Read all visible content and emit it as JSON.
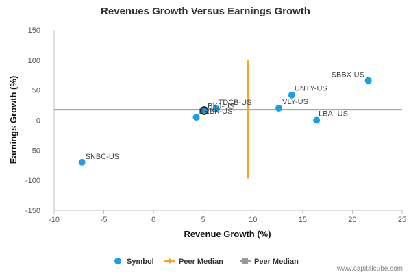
{
  "chart_data": {
    "type": "scatter",
    "title": "Revenues Growth Versus Earnings Growth",
    "xlabel": "Revenue Growth (%)",
    "ylabel": "Earnings Growth (%)",
    "xlim": [
      -10,
      25
    ],
    "ylim": [
      -150,
      150
    ],
    "xticks": [
      -10,
      -5,
      0,
      5,
      10,
      15,
      20,
      25
    ],
    "yticks": [
      -150,
      -100,
      -50,
      0,
      50,
      100,
      150
    ],
    "grid": false,
    "legend_position": "bottom",
    "series": [
      {
        "name": "Symbol",
        "color": "#1aa0e8",
        "points": [
          {
            "label": "SBBX-US",
            "x": 21.6,
            "y": 66
          },
          {
            "label": "UNTY-US",
            "x": 13.9,
            "y": 42
          },
          {
            "label": "VLY-US",
            "x": 12.6,
            "y": 20
          },
          {
            "label": "LBAI-US",
            "x": 16.4,
            "y": 0
          },
          {
            "label": "TDCB-US",
            "x": 6.3,
            "y": 19
          },
          {
            "label": "BKJ-US",
            "x": 5.1,
            "y": 16
          },
          {
            "label": "BRBK-US",
            "x": 4.3,
            "y": 5
          },
          {
            "label": "SNBC-US",
            "x": -7.2,
            "y": -70
          }
        ]
      }
    ],
    "highlight": {
      "label": "BKJ-US",
      "x": 5.1,
      "y": 16
    },
    "peer_median_revenue": {
      "name": "Peer Median",
      "color": "#f5a623",
      "x": 9.5,
      "y_range": [
        -97,
        100
      ]
    },
    "peer_median_earnings": {
      "name": "Peer Median",
      "color": "#9a9a9a",
      "y": 17.5
    },
    "legend": [
      {
        "name": "Symbol",
        "marker": "circle",
        "color": "#1aa0e8"
      },
      {
        "name": "Peer Median",
        "marker": "line-diamond",
        "color": "#f5a623"
      },
      {
        "name": "Peer Median",
        "marker": "line-square",
        "color": "#9a9a9a"
      }
    ]
  },
  "credit": "www.capitalcube.com"
}
